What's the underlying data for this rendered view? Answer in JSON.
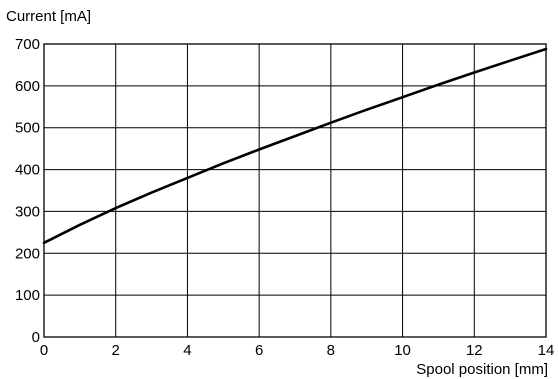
{
  "chart_data": {
    "type": "line",
    "ylabel": "Current [mA]",
    "xlabel": "Spool position [mm]",
    "xlim": [
      0,
      14
    ],
    "ylim": [
      0,
      700
    ],
    "grid": true,
    "x_ticks": [
      "0",
      "2",
      "4",
      "6",
      "8",
      "10",
      "12",
      "14"
    ],
    "y_ticks": [
      "0",
      "100",
      "200",
      "300",
      "400",
      "500",
      "600",
      "700"
    ],
    "series": [
      {
        "color": "#000000",
        "x": [
          0,
          1,
          2,
          3,
          4,
          5,
          6,
          7,
          8,
          9,
          10,
          11,
          12,
          13,
          14
        ],
        "y": [
          225,
          268,
          308,
          345,
          380,
          415,
          448,
          480,
          512,
          543,
          573,
          603,
          632,
          660,
          688
        ]
      }
    ]
  }
}
